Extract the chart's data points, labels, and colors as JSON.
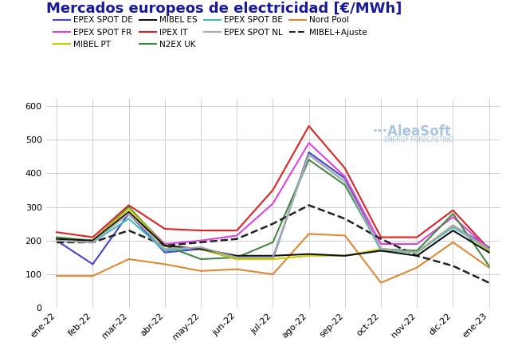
{
  "title": "Mercados europeos de electricidad [€/MWh]",
  "x_labels": [
    "ene-22",
    "feb-22",
    "mar-22",
    "abr-22",
    "may-22",
    "jun-22",
    "jul-22",
    "ago-22",
    "sep-22",
    "oct-22",
    "nov-22",
    "dic-22",
    "ene-23"
  ],
  "series": [
    {
      "label": "EPEX SPOT DE",
      "color": "#4444cc",
      "linestyle": "solid",
      "linewidth": 1.5,
      "values": [
        200,
        130,
        280,
        165,
        175,
        145,
        145,
        462,
        385,
        175,
        165,
        245,
        180
      ]
    },
    {
      "label": "IPEX IT",
      "color": "#dd2222",
      "linestyle": "solid",
      "linewidth": 1.5,
      "values": [
        225,
        210,
        305,
        235,
        230,
        230,
        350,
        540,
        415,
        210,
        210,
        290,
        175
      ]
    },
    {
      "label": "Nord Pool",
      "color": "#dd8833",
      "linestyle": "solid",
      "linewidth": 1.5,
      "values": [
        95,
        95,
        145,
        130,
        110,
        115,
        100,
        220,
        215,
        75,
        120,
        195,
        120
      ]
    },
    {
      "label": "EPEX SPOT FR",
      "color": "#dd44dd",
      "linestyle": "solid",
      "linewidth": 1.5,
      "values": [
        200,
        200,
        295,
        190,
        200,
        215,
        310,
        490,
        390,
        190,
        190,
        270,
        175
      ]
    },
    {
      "label": "N2EX UK",
      "color": "#448844",
      "linestyle": "solid",
      "linewidth": 1.5,
      "values": [
        210,
        200,
        300,
        185,
        145,
        150,
        195,
        440,
        365,
        175,
        170,
        280,
        125
      ]
    },
    {
      "label": "MIBEL+Ajuste",
      "color": "#222222",
      "linestyle": "dashed",
      "linewidth": 1.8,
      "values": [
        195,
        195,
        230,
        185,
        195,
        205,
        250,
        305,
        265,
        205,
        155,
        125,
        75
      ]
    },
    {
      "label": "MIBEL PT",
      "color": "#cccc00",
      "linestyle": "solid",
      "linewidth": 1.5,
      "values": [
        205,
        200,
        295,
        185,
        175,
        145,
        145,
        155,
        155,
        175,
        165,
        245,
        170
      ]
    },
    {
      "label": "EPEX SPOT BE",
      "color": "#44bbbb",
      "linestyle": "solid",
      "linewidth": 1.5,
      "values": [
        200,
        195,
        265,
        170,
        180,
        150,
        150,
        455,
        375,
        170,
        165,
        240,
        175
      ]
    },
    {
      "label": "MIBEL ES",
      "color": "#111111",
      "linestyle": "solid",
      "linewidth": 1.5,
      "values": [
        205,
        200,
        285,
        185,
        175,
        155,
        155,
        160,
        155,
        170,
        155,
        230,
        165
      ]
    },
    {
      "label": "EPEX SPOT NL",
      "color": "#aaaaaa",
      "linestyle": "solid",
      "linewidth": 1.5,
      "values": [
        200,
        195,
        280,
        175,
        180,
        150,
        150,
        455,
        375,
        175,
        165,
        245,
        175
      ]
    }
  ],
  "legend_order": [
    [
      "EPEX SPOT DE",
      "#4444cc",
      "solid"
    ],
    [
      "EPEX SPOT FR",
      "#dd44dd",
      "solid"
    ],
    [
      "MIBEL PT",
      "#cccc00",
      "solid"
    ],
    [
      "MIBEL ES",
      "#111111",
      "solid"
    ],
    [
      "IPEX IT",
      "#dd2222",
      "solid"
    ],
    [
      "N2EX UK",
      "#448844",
      "solid"
    ],
    [
      "EPEX SPOT BE",
      "#44bbbb",
      "solid"
    ],
    [
      "EPEX SPOT NL",
      "#aaaaaa",
      "solid"
    ],
    [
      "Nord Pool",
      "#dd8833",
      "solid"
    ],
    [
      "MIBEL+Ajuste",
      "#222222",
      "dashed"
    ]
  ],
  "ylim": [
    0,
    620
  ],
  "yticks": [
    0,
    100,
    200,
    300,
    400,
    500,
    600
  ],
  "background_color": "#ffffff",
  "grid_color": "#d0d0d0",
  "title_color": "#1a1a99",
  "title_fontsize": 13,
  "legend_fontsize": 7.5,
  "tick_fontsize": 8,
  "watermark_text": "AleaSoft",
  "watermark_sub": "ENERGY FORECASTING",
  "watermark_color": "#a8c4e0"
}
